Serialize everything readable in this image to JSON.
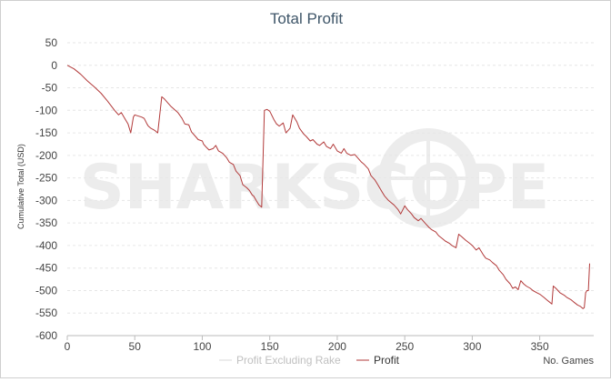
{
  "chart_data": {
    "type": "line",
    "title": "Total Profit",
    "xlabel": "No. Games",
    "ylabel": "Cumulative Total (USD)",
    "watermark": "SHARKSCOPE",
    "xlim": [
      0,
      390
    ],
    "ylim": [
      -600,
      50
    ],
    "xticks": [
      0,
      50,
      100,
      150,
      200,
      250,
      300,
      350
    ],
    "yticks": [
      50,
      0,
      -50,
      -100,
      -150,
      -200,
      -250,
      -300,
      -350,
      -400,
      -450,
      -500,
      -550,
      -600
    ],
    "grid": true,
    "legend_position": "bottom-center",
    "series": [
      {
        "name": "Profit Excluding Rake",
        "color": "#d9d9d9",
        "x": [],
        "y": []
      },
      {
        "name": "Profit",
        "color": "#b23a3a",
        "x": [
          0,
          5,
          10,
          15,
          20,
          25,
          30,
          35,
          38,
          40,
          43,
          45,
          47,
          49,
          50,
          52,
          55,
          57,
          59,
          60,
          62,
          65,
          67,
          70,
          72,
          75,
          77,
          80,
          82,
          85,
          87,
          90,
          92,
          95,
          97,
          100,
          101,
          103,
          105,
          108,
          110,
          112,
          115,
          118,
          120,
          123,
          125,
          128,
          130,
          133,
          135,
          137,
          138,
          140,
          142,
          144,
          146,
          148,
          150,
          151,
          153,
          155,
          157,
          160,
          162,
          165,
          167,
          170,
          172,
          175,
          177,
          180,
          182,
          185,
          187,
          190,
          192,
          195,
          197,
          200,
          203,
          205,
          207,
          210,
          213,
          215,
          218,
          220,
          223,
          225,
          228,
          230,
          233,
          235,
          238,
          240,
          242,
          245,
          247,
          250,
          252,
          255,
          257,
          260,
          262,
          265,
          268,
          270,
          273,
          275,
          278,
          280,
          283,
          285,
          288,
          290,
          292,
          295,
          298,
          300,
          303,
          305,
          308,
          310,
          313,
          315,
          318,
          320,
          323,
          325,
          328,
          330,
          332,
          334,
          336,
          338,
          340,
          343,
          345,
          348,
          350,
          353,
          355,
          357,
          359,
          360,
          362,
          365,
          368,
          370,
          373,
          375,
          378,
          380,
          382,
          383,
          384,
          385,
          386,
          387
        ],
        "y": [
          0,
          -8,
          -20,
          -35,
          -48,
          -62,
          -80,
          -100,
          -110,
          -105,
          -120,
          -130,
          -150,
          -115,
          -110,
          -112,
          -115,
          -118,
          -130,
          -135,
          -140,
          -145,
          -150,
          -70,
          -75,
          -85,
          -92,
          -100,
          -105,
          -118,
          -130,
          -132,
          -148,
          -158,
          -165,
          -168,
          -175,
          -182,
          -188,
          -185,
          -178,
          -190,
          -195,
          -205,
          -215,
          -220,
          -235,
          -245,
          -265,
          -272,
          -278,
          -288,
          -290,
          -300,
          -310,
          -315,
          -100,
          -98,
          -102,
          -108,
          -120,
          -130,
          -135,
          -128,
          -150,
          -140,
          -110,
          -125,
          -140,
          -152,
          -158,
          -168,
          -165,
          -175,
          -178,
          -170,
          -180,
          -185,
          -175,
          -190,
          -195,
          -185,
          -195,
          -200,
          -198,
          -205,
          -215,
          -220,
          -230,
          -245,
          -255,
          -265,
          -280,
          -290,
          -300,
          -305,
          -310,
          -320,
          -330,
          -312,
          -320,
          -330,
          -338,
          -345,
          -340,
          -350,
          -360,
          -365,
          -370,
          -378,
          -385,
          -390,
          -395,
          -400,
          -405,
          -375,
          -380,
          -388,
          -395,
          -400,
          -410,
          -405,
          -420,
          -428,
          -432,
          -438,
          -445,
          -455,
          -465,
          -475,
          -485,
          -495,
          -492,
          -498,
          -478,
          -485,
          -490,
          -495,
          -500,
          -505,
          -508,
          -515,
          -520,
          -525,
          -530,
          -490,
          -495,
          -505,
          -510,
          -515,
          -520,
          -525,
          -532,
          -535,
          -540,
          -538,
          -505,
          -500,
          -500,
          -440
        ]
      }
    ]
  }
}
